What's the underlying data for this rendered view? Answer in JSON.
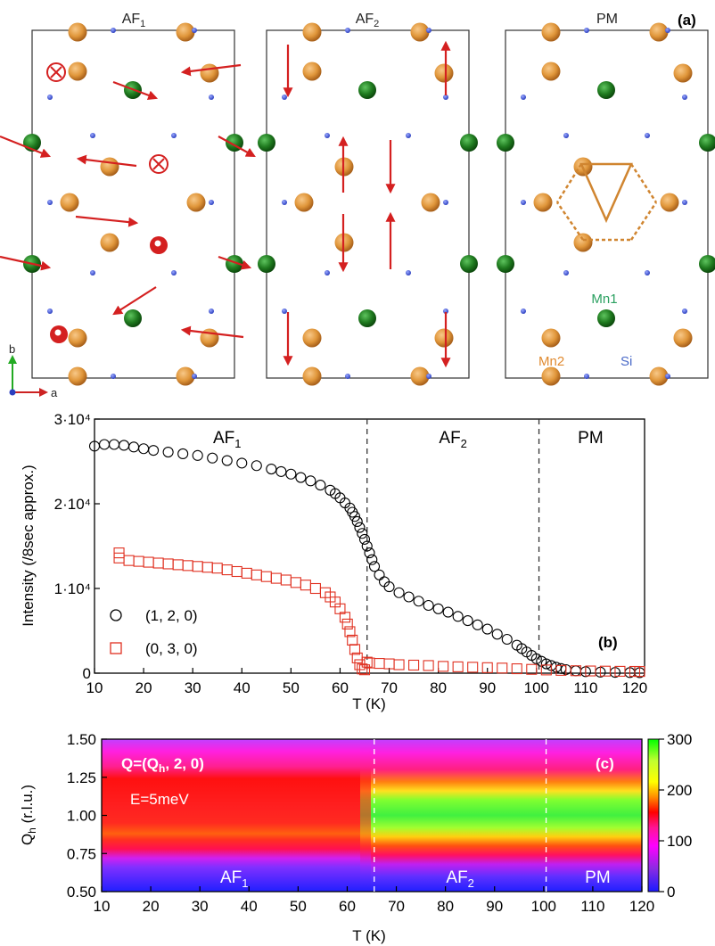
{
  "panel_a": {
    "label": "(a)",
    "cells": [
      {
        "title_main": "AF",
        "title_sub": "1"
      },
      {
        "title_main": "AF",
        "title_sub": "2"
      },
      {
        "title_main": "PM",
        "title_sub": ""
      }
    ],
    "atom_labels": {
      "mn1": "Mn1",
      "mn2": "Mn2",
      "si": "Si"
    },
    "axis_labels": {
      "b": "b",
      "a": "a"
    },
    "colors": {
      "mn2": "#e0963a",
      "mn1": "#1f7a1f",
      "si": "#2b3fbf",
      "moment": "#d42020",
      "mn1_label": "#2aa060",
      "mn2_label": "#e08a30",
      "si_label": "#4a6ac8",
      "axis_b": "#22aa22",
      "axis_a": "#cc2222"
    }
  },
  "chart_data": [
    {
      "type": "scatter",
      "panel_label": "(b)",
      "xlabel": "T (K)",
      "ylabel": "Intensity (/8sec approx.)",
      "xlim": [
        10,
        122
      ],
      "ylim": [
        0,
        30000
      ],
      "x_ticks": [
        10,
        20,
        30,
        40,
        50,
        60,
        70,
        80,
        90,
        100,
        110,
        120
      ],
      "y_ticks": [
        {
          "value": 0,
          "label": "0"
        },
        {
          "value": 10000,
          "label": "1·10⁴"
        },
        {
          "value": 20000,
          "label": "2·10⁴"
        },
        {
          "value": 30000,
          "label": "3·10⁴"
        }
      ],
      "phase_boundaries": [
        65.5,
        100.5
      ],
      "phase_labels": [
        {
          "main": "AF",
          "sub": "1",
          "x": 37
        },
        {
          "main": "AF",
          "sub": "2",
          "x": 83
        },
        {
          "main": "PM",
          "sub": "",
          "x": 111
        }
      ],
      "series": [
        {
          "name": "(1, 2, 0)",
          "marker": "circle",
          "color": "#000000",
          "x": [
            10,
            12,
            14,
            16,
            18,
            20,
            22,
            25,
            28,
            31,
            34,
            37,
            40,
            43,
            46,
            48,
            50,
            52,
            54,
            56,
            58,
            59,
            60,
            61,
            62,
            62.5,
            63,
            63.5,
            64,
            64.5,
            65,
            65.5,
            66,
            66.5,
            67,
            68,
            69,
            70,
            72,
            74,
            76,
            78,
            80,
            82,
            84,
            86,
            88,
            90,
            92,
            94,
            96,
            97,
            98,
            99,
            100,
            101,
            102,
            103,
            104,
            105,
            106,
            108,
            110,
            113,
            116,
            119,
            121
          ],
          "y": [
            26800,
            27000,
            27000,
            26900,
            26700,
            26500,
            26300,
            26100,
            25900,
            25700,
            25400,
            25100,
            24800,
            24500,
            24100,
            23800,
            23500,
            23100,
            22700,
            22200,
            21600,
            21200,
            20700,
            20100,
            19500,
            19000,
            18500,
            17900,
            17200,
            16500,
            15800,
            15000,
            14200,
            13400,
            12600,
            11600,
            10800,
            10200,
            9500,
            9000,
            8500,
            8000,
            7600,
            7200,
            6700,
            6200,
            5700,
            5200,
            4600,
            4000,
            3300,
            2900,
            2500,
            2100,
            1700,
            1400,
            1100,
            900,
            700,
            550,
            420,
            280,
            180,
            120,
            90,
            70,
            60
          ]
        },
        {
          "name": "(0, 3, 0)",
          "marker": "square",
          "color": "#e03020",
          "x": [
            15,
            15,
            17,
            19,
            21,
            23,
            25,
            27,
            29,
            31,
            33,
            35,
            37,
            39,
            41,
            43,
            45,
            47,
            49,
            51,
            53,
            55,
            57,
            58,
            59,
            60,
            61,
            61.5,
            62,
            62.5,
            63,
            63.5,
            64,
            64.5,
            65,
            65.5,
            66,
            68,
            70,
            72,
            75,
            78,
            81,
            84,
            87,
            90,
            93,
            96,
            99,
            102,
            105,
            108,
            111,
            114,
            117,
            120,
            121
          ],
          "y": [
            14200,
            13600,
            13300,
            13200,
            13100,
            13000,
            12900,
            12800,
            12700,
            12600,
            12500,
            12400,
            12200,
            12000,
            11800,
            11600,
            11400,
            11200,
            11000,
            10700,
            10400,
            10000,
            9500,
            9000,
            8400,
            7600,
            6600,
            5800,
            4900,
            3900,
            2800,
            1800,
            1000,
            500,
            400,
            1300,
            1200,
            1150,
            1100,
            1000,
            950,
            900,
            800,
            750,
            700,
            650,
            600,
            520,
            450,
            380,
            330,
            290,
            260,
            240,
            220,
            210,
            200
          ]
        }
      ]
    },
    {
      "type": "heatmap",
      "panel_label": "(c)",
      "xlabel": "T (K)",
      "ylabel": "Qh (r.l.u.)",
      "xlim": [
        10,
        120
      ],
      "ylim": [
        0.5,
        1.5
      ],
      "x_ticks": [
        10,
        20,
        30,
        40,
        50,
        60,
        70,
        80,
        90,
        100,
        110,
        120
      ],
      "y_ticks": [
        0.5,
        0.75,
        1.0,
        1.25,
        1.5
      ],
      "y_tick_labels": [
        "0.50",
        "0.75",
        "1.00",
        "1.25",
        "1.50"
      ],
      "phase_boundaries": [
        65.5,
        100.5
      ],
      "phase_labels": [
        {
          "main": "AF",
          "sub": "1",
          "x": 37
        },
        {
          "main": "AF",
          "sub": "2",
          "x": 83
        },
        {
          "main": "PM",
          "sub": "",
          "x": 111
        }
      ],
      "annotation_q": {
        "prefix": "Q=(Q",
        "sub": "h",
        "suffix": ", 2, 0)"
      },
      "annotation_e": "E=5meV",
      "colorbar": {
        "min": 0,
        "max": 300,
        "ticks": [
          0,
          100,
          200,
          300
        ]
      },
      "colormap_stops": [
        "#1a1aff",
        "#8a2be2",
        "#ff00ff",
        "#ff1493",
        "#ff0000",
        "#ff8c00",
        "#ffff00",
        "#c0ff30",
        "#00ff00"
      ]
    }
  ]
}
